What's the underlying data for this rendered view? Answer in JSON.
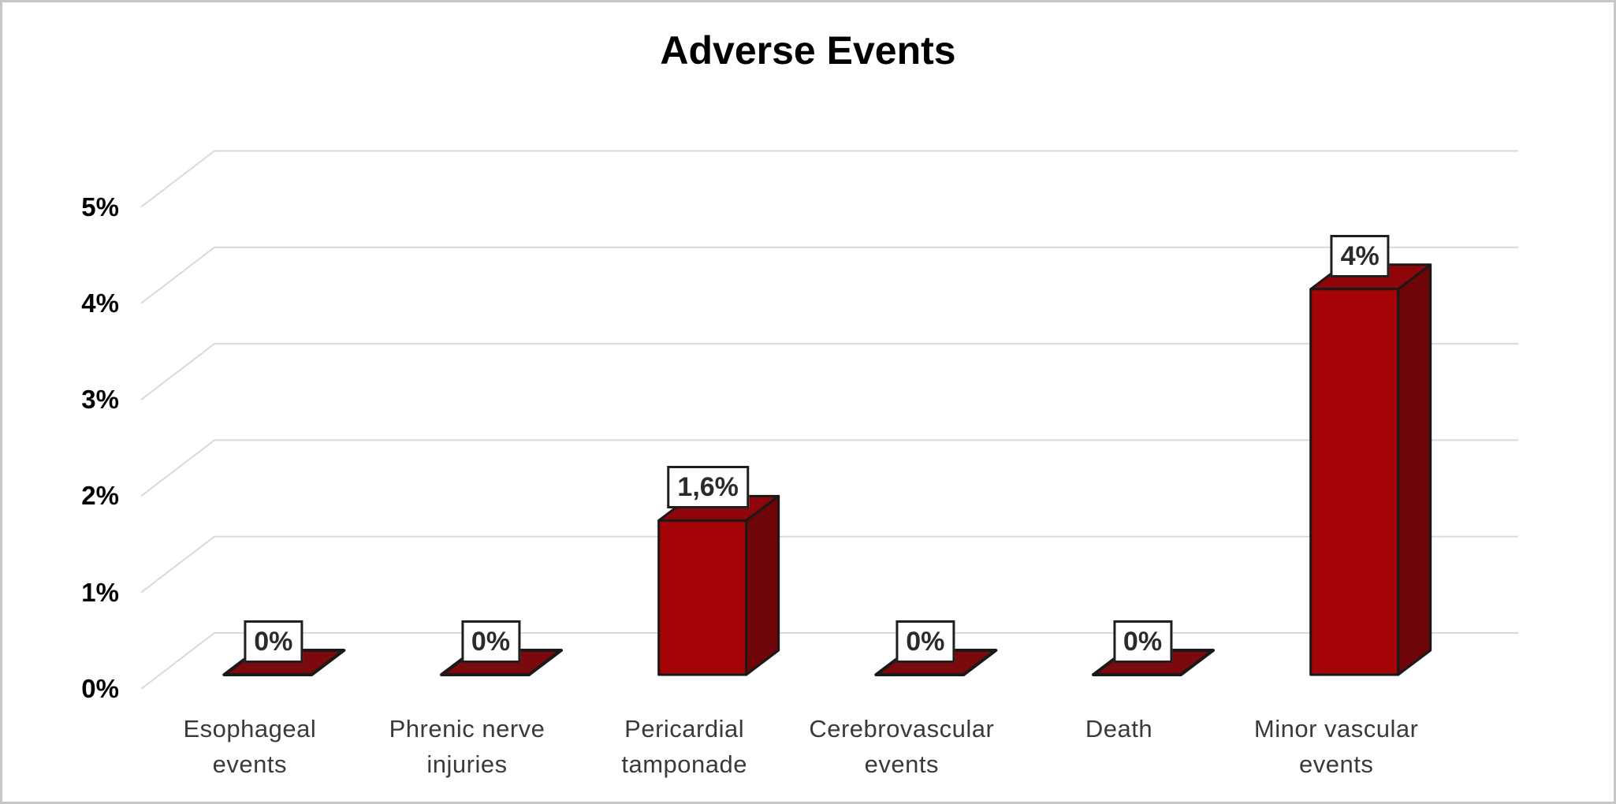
{
  "chart_data": {
    "type": "bar",
    "variant": "3d-column",
    "title": "Adverse Events",
    "categories": [
      "Esophageal events",
      "Phrenic nerve injuries",
      "Pericardial tamponade",
      "Cerebrovascular events",
      "Death",
      "Minor vascular events"
    ],
    "values": [
      0,
      0,
      1.6,
      0,
      0,
      4
    ],
    "value_labels": [
      "0%",
      "0%",
      "1,6%",
      "0%",
      "0%",
      "4%"
    ],
    "y_ticks": [
      "0%",
      "1%",
      "2%",
      "3%",
      "4%",
      "5%"
    ],
    "ylim": [
      0,
      5
    ],
    "xlabel": "",
    "ylabel": "",
    "grid": true,
    "legend": false,
    "colors": {
      "bar_front": "#a40408",
      "bar_top": "#8f060a",
      "bar_side": "#6e0508",
      "bar_base_slab": "#7c090d",
      "bar_outline": "#191919",
      "gridline": "#d9d9d9",
      "tick_text": "#000000",
      "category_text": "#3a3a3a",
      "value_label_text": "#2b2b2b",
      "value_label_border": "#1f1f1f",
      "value_label_bg": "#ffffff",
      "title_text": "#000000",
      "frame_border": "#c6c6c6"
    }
  }
}
